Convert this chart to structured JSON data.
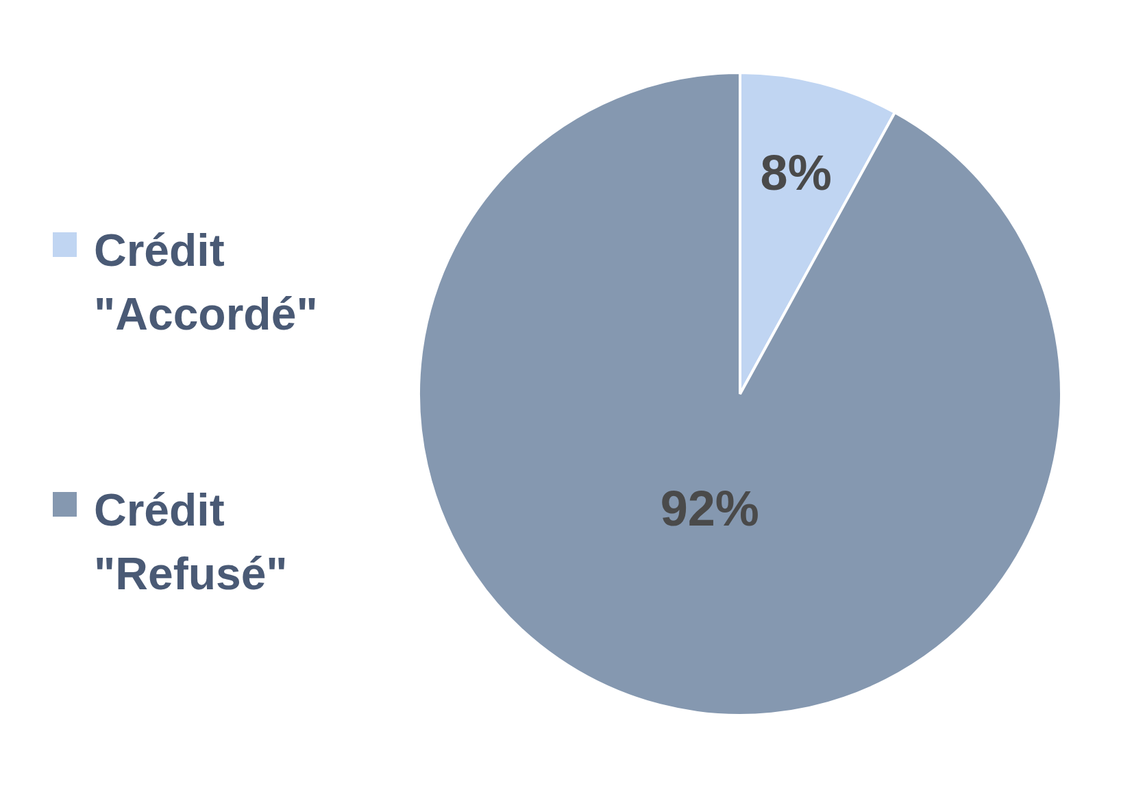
{
  "chart_data": {
    "type": "pie",
    "categories": [
      "Crédit \"Accordé\"",
      "Crédit \"Refusé\""
    ],
    "values": [
      8,
      92
    ],
    "colors": [
      "#c0d5f2",
      "#8598b0"
    ],
    "value_labels": [
      "8%",
      "92%"
    ],
    "legend": "left"
  }
}
